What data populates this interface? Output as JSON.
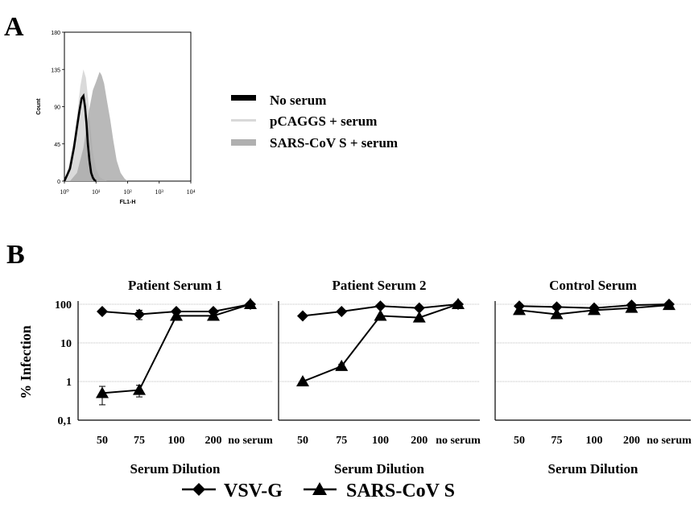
{
  "panel_a": {
    "label": "A",
    "legend": [
      {
        "label": "No serum",
        "swatch": "black"
      },
      {
        "label": "pCAGGS + serum",
        "swatch": "light"
      },
      {
        "label": "SARS-CoV S + serum",
        "swatch": "gray"
      }
    ]
  },
  "panel_b": {
    "label": "B",
    "legend": [
      {
        "label": "VSV-G",
        "marker": "diamond"
      },
      {
        "label": "SARS-CoV S",
        "marker": "triangle"
      }
    ]
  },
  "colors": {
    "black_line": "#000000",
    "light_fill": "#d6d6d6",
    "gray_fill": "#a8a8a8",
    "grid": "#bdbdbd"
  },
  "chart_data": [
    {
      "type": "area",
      "title": "",
      "xlabel": "FL1-H",
      "ylabel": "Count",
      "xscale": "log",
      "xlim": [
        1,
        10000
      ],
      "ylim": [
        0,
        180
      ],
      "xticks": [
        1,
        10,
        100,
        1000,
        10000
      ],
      "xtick_labels": [
        "10⁰",
        "10¹",
        "10²",
        "10³",
        "10⁴"
      ],
      "yticks": [
        0,
        45,
        90,
        135,
        180
      ],
      "ytick_labels": [
        "0",
        "45",
        "90",
        "135",
        "180"
      ],
      "legend_position": "right",
      "series": [
        {
          "name": "pCAGGS + serum",
          "style": "light",
          "x": [
            1,
            1.4,
            2,
            2.6,
            3.2,
            4,
            4.8,
            5.6,
            6.5,
            8,
            10,
            13,
            17,
            22
          ],
          "y": [
            0,
            20,
            50,
            85,
            115,
            135,
            125,
            100,
            70,
            35,
            15,
            5,
            2,
            0
          ]
        },
        {
          "name": "SARS-CoV S + serum",
          "style": "gray",
          "x": [
            1.5,
            2.5,
            4,
            6,
            8,
            10,
            13,
            15,
            18,
            22,
            28,
            35,
            45,
            60,
            80,
            100
          ],
          "y": [
            0,
            10,
            40,
            85,
            110,
            120,
            132,
            128,
            118,
            98,
            75,
            50,
            25,
            10,
            3,
            0
          ]
        },
        {
          "name": "No serum",
          "style": "black",
          "x": [
            1,
            1.5,
            2,
            2.5,
            3,
            3.5,
            4,
            4.5,
            5,
            5.5,
            6.2,
            7,
            8,
            9,
            10
          ],
          "y": [
            0,
            15,
            40,
            65,
            85,
            100,
            103,
            90,
            70,
            45,
            25,
            10,
            4,
            1,
            0
          ]
        }
      ]
    },
    {
      "type": "line",
      "title": "Patient Serum 1",
      "xlabel": "Serum Dilution",
      "ylabel": "% Infection",
      "yscale": "log",
      "ylim": [
        0.1,
        100
      ],
      "ytick_labels": [
        "0,1",
        "1",
        "10",
        "100"
      ],
      "categories": [
        "50",
        "75",
        "100",
        "200",
        "no serum"
      ],
      "series": [
        {
          "name": "VSV-G",
          "marker": "diamond",
          "values": [
            65,
            55,
            65,
            65,
            100
          ],
          "err": [
            0,
            15,
            0,
            0,
            0
          ]
        },
        {
          "name": "SARS-CoV S",
          "marker": "triangle",
          "values": [
            0.5,
            0.6,
            50,
            50,
            100
          ],
          "err": [
            0.25,
            0.2,
            10,
            8,
            0
          ]
        }
      ]
    },
    {
      "type": "line",
      "title": "Patient Serum 2",
      "xlabel": "Serum Dilution",
      "ylabel": "",
      "yscale": "log",
      "ylim": [
        0.1,
        100
      ],
      "categories": [
        "50",
        "75",
        "100",
        "200",
        "no serum"
      ],
      "series": [
        {
          "name": "VSV-G",
          "marker": "diamond",
          "values": [
            50,
            65,
            90,
            80,
            100
          ],
          "err": [
            0,
            0,
            0,
            0,
            0
          ]
        },
        {
          "name": "SARS-CoV S",
          "marker": "triangle",
          "values": [
            1,
            2.5,
            50,
            45,
            100
          ],
          "err": [
            0,
            0.3,
            0,
            0,
            0
          ]
        }
      ]
    },
    {
      "type": "line",
      "title": "Control Serum",
      "xlabel": "Serum Dilution",
      "ylabel": "",
      "yscale": "log",
      "ylim": [
        0.1,
        100
      ],
      "categories": [
        "50",
        "75",
        "100",
        "200",
        "no serum"
      ],
      "series": [
        {
          "name": "VSV-G",
          "marker": "diamond",
          "values": [
            90,
            85,
            80,
            95,
            100
          ],
          "err": [
            0,
            0,
            0,
            0,
            0
          ]
        },
        {
          "name": "SARS-CoV S",
          "marker": "triangle",
          "values": [
            70,
            55,
            70,
            80,
            95
          ],
          "err": [
            0,
            0,
            0,
            0,
            0
          ]
        }
      ]
    }
  ]
}
